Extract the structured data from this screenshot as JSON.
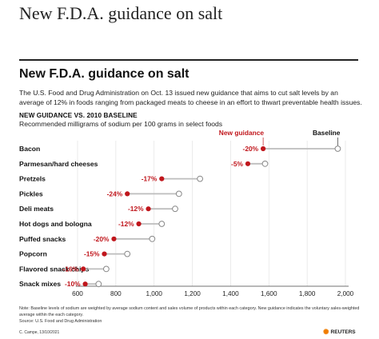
{
  "page_title": "New F.D.A. guidance on salt",
  "chart_title": "New F.D.A. guidance on salt",
  "description": "The U.S. Food and Drug Administration on Oct. 13 issued new guidance that aims to cut salt levels by an average of 12% in foods ranging from packaged meats to cheese in an effort to thwart preventable health issues.",
  "subtitle": "NEW GUIDANCE VS. 2010 BASELINE",
  "subtitle2": "Recommended milligrams of sodium per 100 grams in select foods",
  "note": "Note: Baseline levels of sodium are weighted by average sodium content and sales volume of products within each category. New guidance indicates the voluntary sales-weighted average within the each category.",
  "source": "Source: U.S. Food and Drug Administration",
  "credit": "C. Campe, 13/10/2021",
  "logo_text": "REUTERS",
  "colors": {
    "new_guidance": "#c0161c",
    "baseline": "#888888",
    "connector": "#bdbdbd"
  },
  "chart_data": {
    "type": "dot-plot",
    "legend": {
      "new_guidance": "New guidance",
      "baseline": "Baseline"
    },
    "categories": [
      "Bacon",
      "Parmesan/hard cheeses",
      "Pretzels",
      "Pickles",
      "Deli meats",
      "Hot dogs and bologna",
      "Puffed snacks",
      "Popcorn",
      "Flavored snack chips",
      "Snack mixes"
    ],
    "baseline": [
      1960,
      1580,
      1240,
      1130,
      1110,
      1040,
      990,
      860,
      750,
      710
    ],
    "new_guidance": [
      1570,
      1490,
      1040,
      860,
      970,
      920,
      790,
      740,
      630,
      640
    ],
    "change_labels": [
      "-20%",
      "-5%",
      "-17%",
      "-24%",
      "-12%",
      "-12%",
      "-20%",
      "-15%",
      "-16%",
      "-10%"
    ],
    "x_ticks": [
      600,
      800,
      1000,
      1200,
      1400,
      1600,
      1800,
      2000
    ],
    "x_tick_labels": [
      "600",
      "800",
      "1,000",
      "1,200",
      "1,400",
      "1,600",
      "1,800",
      "2,000"
    ],
    "xlim": [
      600,
      2000
    ],
    "grid": true
  }
}
